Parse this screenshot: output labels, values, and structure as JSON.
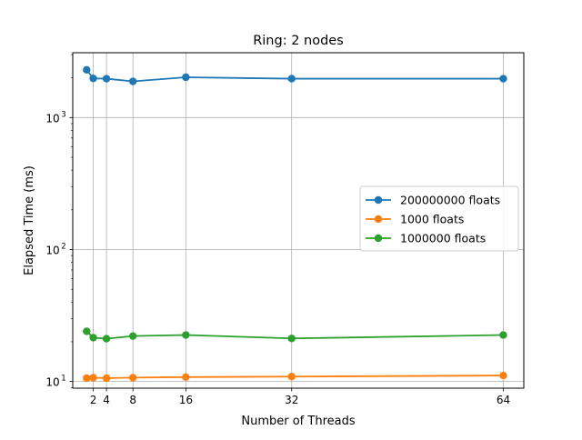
{
  "chart_data": {
    "type": "line",
    "title": "Ring: 2 nodes",
    "xlabel": "Number of Threads",
    "ylabel": "Elapsed Time (ms)",
    "x": [
      1,
      2,
      4,
      8,
      16,
      32,
      64
    ],
    "xticks": [
      2,
      4,
      8,
      16,
      32,
      64
    ],
    "xlim": [
      -1.1,
      67.1
    ],
    "ylim": [
      8.9,
      3100
    ],
    "yscale": "log",
    "yticks": [
      {
        "value": 10,
        "base": "10",
        "exp": "1"
      },
      {
        "value": 100,
        "base": "10",
        "exp": "2"
      },
      {
        "value": 1000,
        "base": "10",
        "exp": "3"
      }
    ],
    "grid": true,
    "legend_position": "center-right",
    "series": [
      {
        "name": "200000000 floats",
        "color": "#1f77b4",
        "values": [
          2300,
          1980,
          1970,
          1880,
          2020,
          1970,
          1970
        ]
      },
      {
        "name": "1000 floats",
        "color": "#ff7f0e",
        "values": [
          10.6,
          10.7,
          10.6,
          10.7,
          10.8,
          10.9,
          11.1
        ]
      },
      {
        "name": "1000000 floats",
        "color": "#2ca02c",
        "values": [
          24.0,
          21.5,
          21.1,
          22.1,
          22.5,
          21.2,
          22.5
        ]
      }
    ]
  }
}
